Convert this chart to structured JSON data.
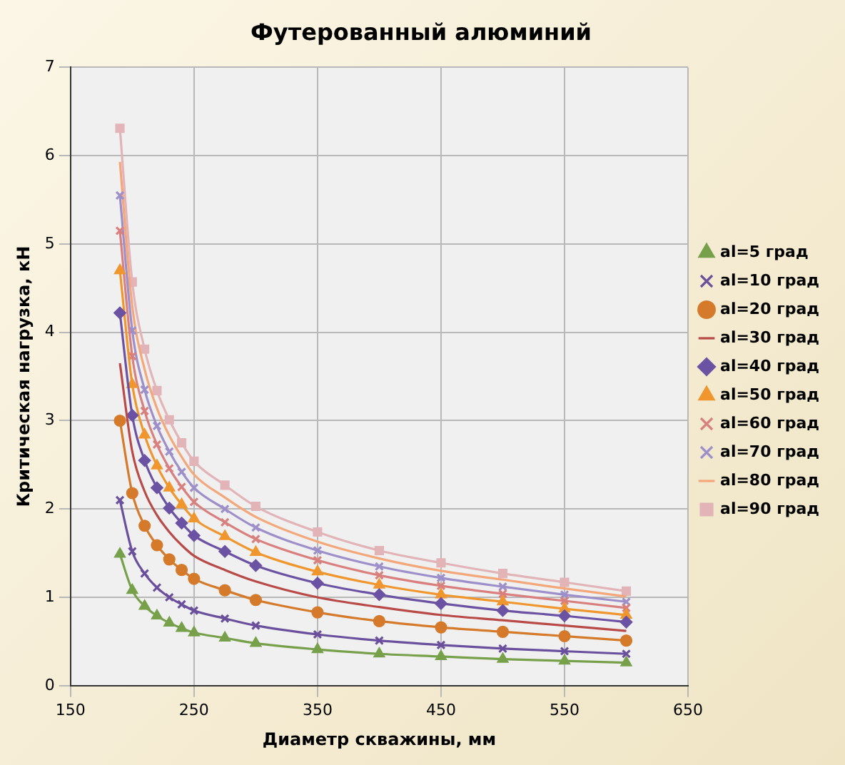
{
  "chart_data": {
    "type": "line",
    "title": "Футерованный алюминий",
    "xlabel": "Диаметр скважины, мм",
    "ylabel": "Критическая нагрузка, кН",
    "x": [
      190,
      200,
      210,
      220,
      230,
      240,
      250,
      275,
      300,
      350,
      400,
      450,
      500,
      550,
      600
    ],
    "xlim": [
      150,
      650
    ],
    "xticks": [
      150,
      250,
      350,
      450,
      550,
      650
    ],
    "ylim": [
      0,
      7
    ],
    "yticks": [
      0,
      1,
      2,
      3,
      4,
      5,
      6,
      7
    ],
    "grid": true,
    "legend": "right",
    "line_style": "solid",
    "series": [
      {
        "name": "al=5 град",
        "color": "#77a04a",
        "marker": "triangle",
        "values": [
          1.49,
          1.08,
          0.9,
          0.79,
          0.71,
          0.65,
          0.6,
          0.54,
          0.48,
          0.41,
          0.36,
          0.33,
          0.3,
          0.28,
          0.26
        ]
      },
      {
        "name": "al=10 град",
        "color": "#6a4f9c",
        "marker": "cross",
        "values": [
          2.1,
          1.52,
          1.27,
          1.11,
          1.0,
          0.92,
          0.85,
          0.76,
          0.68,
          0.58,
          0.51,
          0.46,
          0.42,
          0.39,
          0.36
        ]
      },
      {
        "name": "al=20 град",
        "color": "#d47a2a",
        "marker": "circle",
        "values": [
          3.0,
          2.18,
          1.81,
          1.59,
          1.43,
          1.31,
          1.21,
          1.08,
          0.97,
          0.83,
          0.73,
          0.66,
          0.61,
          0.56,
          0.51
        ]
      },
      {
        "name": "al=30 град",
        "color": "#b84a48",
        "marker": "none",
        "values": [
          3.65,
          2.65,
          2.2,
          1.93,
          1.74,
          1.59,
          1.47,
          1.31,
          1.18,
          1.0,
          0.89,
          0.8,
          0.74,
          0.68,
          0.62
        ]
      },
      {
        "name": "al=40 град",
        "color": "#6b52a3",
        "marker": "diamond",
        "values": [
          4.22,
          3.06,
          2.55,
          2.24,
          2.01,
          1.84,
          1.7,
          1.52,
          1.36,
          1.16,
          1.03,
          0.93,
          0.85,
          0.79,
          0.72
        ]
      },
      {
        "name": "al=50 град",
        "color": "#f0962e",
        "marker": "triangle",
        "values": [
          4.7,
          3.41,
          2.84,
          2.49,
          2.24,
          2.05,
          1.89,
          1.69,
          1.51,
          1.29,
          1.14,
          1.03,
          0.95,
          0.87,
          0.8
        ]
      },
      {
        "name": "al=60 град",
        "color": "#d9807e",
        "marker": "cross",
        "values": [
          5.15,
          3.73,
          3.11,
          2.73,
          2.46,
          2.25,
          2.08,
          1.85,
          1.66,
          1.42,
          1.25,
          1.13,
          1.04,
          0.96,
          0.88
        ]
      },
      {
        "name": "al=70 град",
        "color": "#9d8fc9",
        "marker": "cross",
        "values": [
          5.55,
          4.02,
          3.35,
          2.94,
          2.65,
          2.42,
          2.24,
          2.0,
          1.79,
          1.53,
          1.35,
          1.22,
          1.12,
          1.03,
          0.95
        ]
      },
      {
        "name": "al=80 град",
        "color": "#f4a77a",
        "marker": "none",
        "values": [
          5.93,
          4.3,
          3.58,
          3.14,
          2.83,
          2.59,
          2.39,
          2.13,
          1.91,
          1.63,
          1.44,
          1.3,
          1.2,
          1.1,
          1.01
        ]
      },
      {
        "name": "al=90 град",
        "color": "#e2b4b8",
        "marker": "square",
        "values": [
          6.31,
          4.57,
          3.81,
          3.34,
          3.01,
          2.75,
          2.54,
          2.27,
          2.03,
          1.74,
          1.53,
          1.39,
          1.27,
          1.17,
          1.07
        ]
      }
    ]
  }
}
